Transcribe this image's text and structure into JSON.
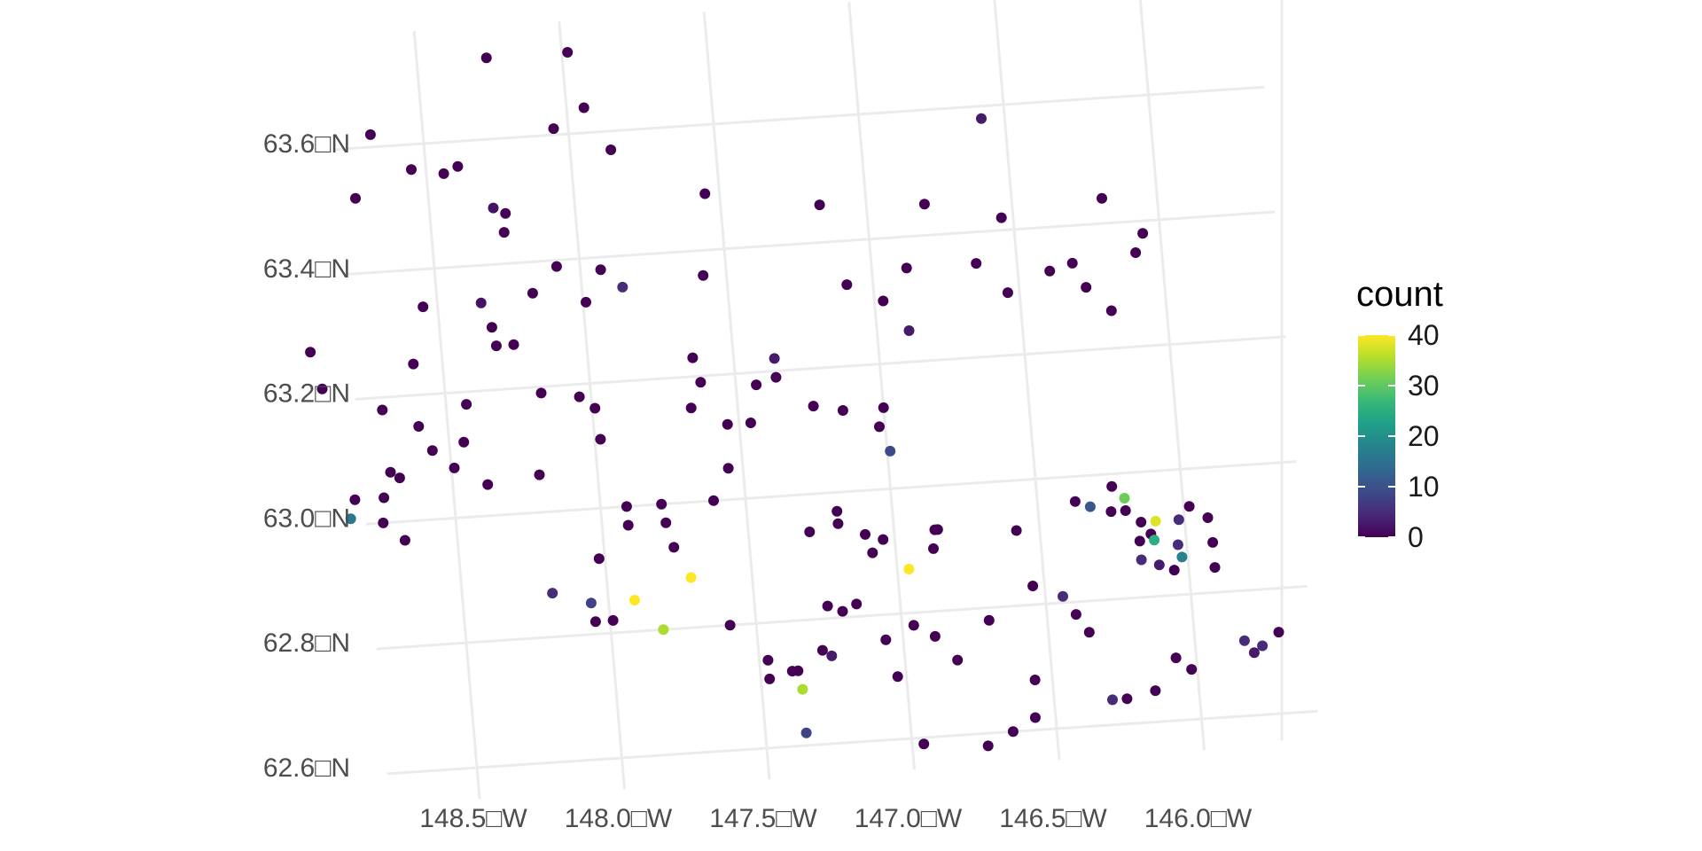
{
  "chart_data": {
    "type": "scatter",
    "projection": "conic (graticule lines tilted)",
    "grid": true,
    "xlim": [
      -148.8,
      -145.5
    ],
    "ylim": [
      62.55,
      63.75
    ],
    "x_ticks": [
      -148.5,
      -148.0,
      -147.5,
      -147.0,
      -146.5,
      -146.0
    ],
    "y_ticks": [
      62.6,
      62.8,
      63.0,
      63.2,
      63.4,
      63.6
    ],
    "x_tick_labels": [
      "148.5□W",
      "148.0□W",
      "147.5□W",
      "147.0□W",
      "146.5□W",
      "146.0□W"
    ],
    "y_tick_labels": [
      "62.6□N",
      "62.8□N",
      "63.0□N",
      "63.2□N",
      "63.4□N",
      "63.6□N"
    ],
    "legend": {
      "title": "count",
      "position": "right",
      "limits": [
        0,
        40
      ],
      "breaks": [
        0,
        10,
        20,
        30,
        40
      ],
      "labels": [
        "0",
        "10",
        "20",
        "30",
        "40"
      ],
      "palette": [
        "#440154",
        "#482878",
        "#3E4A89",
        "#31688E",
        "#26828E",
        "#1F9E89",
        "#35B779",
        "#6DCD59",
        "#B4DE2C",
        "#FDE725"
      ]
    },
    "points": [
      [
        -148.26,
        63.73,
        0
      ],
      [
        -147.98,
        63.73,
        0
      ],
      [
        -148.05,
        63.61,
        0
      ],
      [
        -148.68,
        63.62,
        0
      ],
      [
        -147.94,
        63.64,
        0
      ],
      [
        -147.86,
        63.57,
        0
      ],
      [
        -148.44,
        63.55,
        0
      ],
      [
        -148.55,
        63.56,
        0
      ],
      [
        -148.75,
        63.52,
        0
      ],
      [
        -148.39,
        63.56,
        0
      ],
      [
        -148.28,
        63.49,
        2
      ],
      [
        -148.25,
        63.45,
        0
      ],
      [
        -147.55,
        63.49,
        0
      ],
      [
        -148.24,
        63.48,
        0
      ],
      [
        -147.16,
        63.46,
        0
      ],
      [
        -146.58,
        63.58,
        3
      ],
      [
        -148.08,
        63.39,
        0
      ],
      [
        -148.55,
        63.34,
        0
      ],
      [
        -148.35,
        63.34,
        2
      ],
      [
        -148.17,
        63.35,
        0
      ],
      [
        -147.99,
        63.33,
        0
      ],
      [
        -147.93,
        63.38,
        0
      ],
      [
        -147.86,
        63.35,
        5
      ],
      [
        -148.32,
        63.3,
        0
      ],
      [
        -148.31,
        63.27,
        0
      ],
      [
        -148.25,
        63.27,
        0
      ],
      [
        -147.58,
        63.36,
        0
      ],
      [
        -147.09,
        63.33,
        0
      ],
      [
        -146.8,
        63.45,
        0
      ],
      [
        -146.88,
        63.35,
        0
      ],
      [
        -146.64,
        63.35,
        0
      ],
      [
        -146.54,
        63.42,
        0
      ],
      [
        -146.19,
        63.44,
        0
      ],
      [
        -146.06,
        63.38,
        0
      ],
      [
        -146.39,
        63.33,
        0
      ],
      [
        -146.09,
        63.35,
        0
      ],
      [
        -146.31,
        63.34,
        0
      ],
      [
        -146.27,
        63.3,
        0
      ],
      [
        -146.19,
        63.26,
        0
      ],
      [
        -146.54,
        63.3,
        0
      ],
      [
        -146.97,
        63.3,
        0
      ],
      [
        -146.89,
        63.25,
        3
      ],
      [
        -147.64,
        63.23,
        0
      ],
      [
        -147.36,
        63.22,
        3
      ],
      [
        -148.95,
        63.28,
        0
      ],
      [
        -148.6,
        63.25,
        0
      ],
      [
        -148.92,
        63.22,
        0
      ],
      [
        -148.72,
        63.18,
        0
      ],
      [
        -148.43,
        63.18,
        0
      ],
      [
        -148.17,
        63.19,
        0
      ],
      [
        -148.04,
        63.18,
        0
      ],
      [
        -147.99,
        63.16,
        0
      ],
      [
        -147.62,
        63.19,
        0
      ],
      [
        -147.43,
        63.18,
        0
      ],
      [
        -147.36,
        63.19,
        0
      ],
      [
        -147.14,
        63.13,
        0
      ],
      [
        -147.24,
        63.14,
        0
      ],
      [
        -147.0,
        63.13,
        0
      ],
      [
        -147.66,
        63.15,
        0
      ],
      [
        -148.6,
        63.15,
        0
      ],
      [
        -148.45,
        63.12,
        0
      ],
      [
        -148.56,
        63.11,
        0
      ],
      [
        -148.68,
        63.07,
        0
      ],
      [
        -148.49,
        63.08,
        0
      ],
      [
        -148.71,
        63.08,
        0
      ],
      [
        -148.38,
        63.05,
        0
      ],
      [
        -148.2,
        63.06,
        0
      ],
      [
        -148.84,
        63.04,
        0
      ],
      [
        -148.74,
        63.04,
        0
      ],
      [
        -148.86,
        63.01,
        16
      ],
      [
        -148.75,
        63.0,
        0
      ],
      [
        -148.68,
        62.97,
        0
      ],
      [
        -147.55,
        63.05,
        0
      ],
      [
        -147.54,
        63.12,
        0
      ],
      [
        -147.46,
        63.12,
        0
      ],
      [
        -147.98,
        63.11,
        0
      ],
      [
        -147.91,
        63.0,
        0
      ],
      [
        -147.79,
        63.0,
        0
      ],
      [
        -147.61,
        63.0,
        0
      ],
      [
        -147.91,
        62.97,
        0
      ],
      [
        -147.78,
        62.97,
        0
      ],
      [
        -147.76,
        62.93,
        0
      ],
      [
        -148.02,
        62.92,
        0
      ],
      [
        -147.29,
        62.94,
        0
      ],
      [
        -147.19,
        62.97,
        0
      ],
      [
        -147.19,
        62.95,
        0
      ],
      [
        -147.1,
        62.93,
        0
      ],
      [
        -147.04,
        62.92,
        0
      ],
      [
        -147.08,
        62.9,
        0
      ],
      [
        -146.85,
        62.93,
        0
      ],
      [
        -146.87,
        62.9,
        0
      ],
      [
        -146.86,
        62.93,
        0
      ],
      [
        -146.2,
        62.94,
        0
      ],
      [
        -146.58,
        62.92,
        0
      ],
      [
        -146.37,
        62.96,
        0
      ],
      [
        -146.16,
        62.89,
        0
      ],
      [
        -145.98,
        62.94,
        0
      ],
      [
        -145.92,
        62.92,
        0
      ],
      [
        -145.91,
        62.88,
        0
      ],
      [
        -145.91,
        62.84,
        0
      ],
      [
        -146.03,
        62.88,
        5
      ],
      [
        -146.12,
        62.9,
        0
      ],
      [
        -146.32,
        62.95,
        11
      ],
      [
        -146.25,
        62.94,
        0
      ],
      [
        -146.02,
        62.92,
        5
      ],
      [
        -146.11,
        62.89,
        25
      ],
      [
        -146.05,
        62.84,
        0
      ],
      [
        -146.1,
        62.85,
        3
      ],
      [
        -146.02,
        62.86,
        18
      ],
      [
        -146.16,
        62.86,
        5
      ],
      [
        -146.1,
        62.92,
        38
      ],
      [
        -146.15,
        62.92,
        0
      ],
      [
        -146.2,
        62.96,
        31
      ],
      [
        -146.24,
        62.98,
        0
      ],
      [
        -146.96,
        62.87,
        40
      ],
      [
        -147.71,
        62.88,
        40
      ],
      [
        -147.91,
        62.85,
        40
      ],
      [
        -148.19,
        62.87,
        5
      ],
      [
        -148.06,
        62.85,
        8
      ],
      [
        -147.99,
        62.82,
        0
      ],
      [
        -148.05,
        62.82,
        0
      ],
      [
        -147.82,
        62.8,
        35
      ],
      [
        -147.59,
        62.8,
        0
      ],
      [
        -147.47,
        62.74,
        0
      ],
      [
        -147.39,
        62.72,
        0
      ],
      [
        -147.47,
        62.71,
        0
      ],
      [
        -147.36,
        62.69,
        35
      ],
      [
        -147.37,
        62.72,
        0
      ],
      [
        -147.25,
        62.74,
        3
      ],
      [
        -147.28,
        62.75,
        0
      ],
      [
        -147.36,
        62.62,
        8
      ],
      [
        -147.25,
        62.82,
        0
      ],
      [
        -147.2,
        62.81,
        0
      ],
      [
        -147.15,
        62.82,
        0
      ],
      [
        -147.06,
        62.76,
        0
      ],
      [
        -146.96,
        62.78,
        0
      ],
      [
        -146.89,
        62.76,
        0
      ],
      [
        -146.82,
        62.72,
        0
      ],
      [
        -147.03,
        62.7,
        0
      ],
      [
        -146.96,
        62.59,
        0
      ],
      [
        -146.74,
        62.58,
        0
      ],
      [
        -146.65,
        62.6,
        0
      ],
      [
        -146.57,
        62.62,
        0
      ],
      [
        -146.56,
        62.68,
        0
      ],
      [
        -146.7,
        62.78,
        0
      ],
      [
        -146.54,
        62.83,
        0
      ],
      [
        -146.44,
        62.81,
        5
      ],
      [
        -146.36,
        62.75,
        0
      ],
      [
        -146.4,
        62.78,
        0
      ],
      [
        -146.3,
        62.64,
        5
      ],
      [
        -146.25,
        62.64,
        0
      ],
      [
        -146.15,
        62.65,
        0
      ],
      [
        -146.07,
        62.7,
        0
      ],
      [
        -146.02,
        62.68,
        0
      ],
      [
        -145.83,
        62.72,
        5
      ],
      [
        -145.77,
        62.71,
        5
      ],
      [
        -145.71,
        62.73,
        0
      ],
      [
        -145.8,
        62.7,
        3
      ],
      [
        -146.99,
        63.06,
        9
      ],
      [
        -147.02,
        63.1,
        0
      ]
    ]
  }
}
